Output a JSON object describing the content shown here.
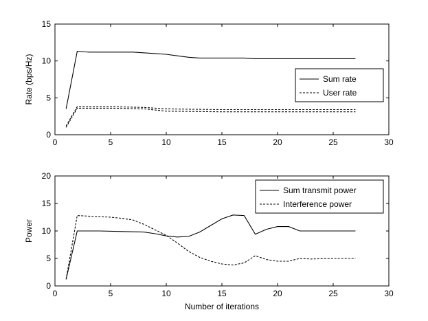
{
  "chart_data": [
    {
      "type": "line",
      "ylabel": "Rate (bps/Hz)",
      "xlabel": "",
      "xlim": [
        0,
        30
      ],
      "ylim": [
        0,
        15
      ],
      "xticks": [
        "0",
        "5",
        "10",
        "15",
        "20",
        "25",
        "30"
      ],
      "yticks": [
        "0",
        "5",
        "10",
        "15"
      ],
      "legend_position": "right",
      "series": [
        {
          "name": "Sum rate",
          "style": "solid",
          "x": [
            1,
            2,
            3,
            5,
            7,
            9,
            10,
            11,
            12,
            13,
            14,
            15,
            16,
            17,
            18,
            19,
            20,
            21,
            22,
            23,
            24,
            25,
            26,
            27
          ],
          "y": [
            3.5,
            11.3,
            11.2,
            11.2,
            11.2,
            11.0,
            10.9,
            10.7,
            10.5,
            10.4,
            10.4,
            10.4,
            10.4,
            10.4,
            10.3,
            10.3,
            10.3,
            10.3,
            10.3,
            10.3,
            10.3,
            10.3,
            10.3,
            10.3
          ]
        },
        {
          "name": "User rate",
          "style": "dashed",
          "x": [
            1,
            2,
            5,
            8,
            10,
            15,
            20,
            25,
            27
          ],
          "y": [
            1.2,
            3.8,
            3.8,
            3.7,
            3.5,
            3.4,
            3.4,
            3.4,
            3.4
          ]
        },
        {
          "name": "",
          "style": "dashed",
          "x": [
            1,
            2,
            5,
            8,
            10,
            15,
            20,
            25,
            27
          ],
          "y": [
            1.0,
            3.6,
            3.6,
            3.5,
            3.2,
            3.1,
            3.1,
            3.1,
            3.1
          ]
        }
      ]
    },
    {
      "type": "line",
      "ylabel": "Power",
      "xlabel": "Number of iterations",
      "xlim": [
        0,
        30
      ],
      "ylim": [
        0,
        20
      ],
      "xticks": [
        "0",
        "5",
        "10",
        "15",
        "20",
        "25",
        "30"
      ],
      "yticks": [
        "0",
        "5",
        "10",
        "15",
        "20"
      ],
      "legend_position": "top-right",
      "series": [
        {
          "name": "Sum transmit power",
          "style": "solid",
          "x": [
            1,
            2,
            4,
            6,
            8,
            9,
            10,
            11,
            12,
            13,
            14,
            15,
            16,
            17,
            18,
            19,
            20,
            21,
            22,
            23,
            25,
            27
          ],
          "y": [
            1.2,
            10.0,
            10.0,
            9.9,
            9.8,
            9.5,
            9.1,
            8.9,
            9.0,
            9.8,
            11.0,
            12.2,
            12.9,
            12.8,
            9.4,
            10.3,
            10.8,
            10.8,
            10.0,
            10.0,
            10.0,
            10.0
          ]
        },
        {
          "name": "Interference power",
          "style": "dashed",
          "x": [
            1,
            2,
            3,
            5,
            6,
            7,
            8,
            9,
            10,
            11,
            12,
            13,
            14,
            15,
            16,
            17,
            18,
            19,
            20,
            21,
            22,
            23,
            25,
            27
          ],
          "y": [
            1.2,
            12.8,
            12.7,
            12.5,
            12.3,
            12.0,
            11.2,
            10.2,
            9.2,
            7.8,
            6.3,
            5.2,
            4.5,
            4.0,
            3.8,
            4.2,
            5.5,
            4.8,
            4.5,
            4.5,
            5.0,
            4.9,
            5.0,
            5.0
          ]
        }
      ]
    }
  ]
}
